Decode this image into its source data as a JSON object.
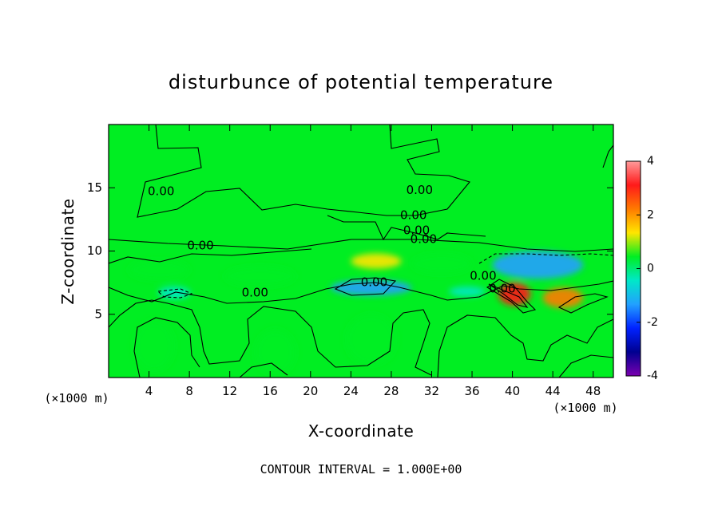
{
  "figure": {
    "title": "disturbunce of potential temperature",
    "contour_interval": "CONTOUR INTERVAL = 1.000E+00"
  },
  "chart_data": {
    "type": "heatmap",
    "title": "disturbunce of potential temperature",
    "xlabel": "X-coordinate",
    "ylabel": "Z-coordinate",
    "x_unit_left": "(×1000 m)",
    "x_unit_right": "(×1000 m)",
    "xlim": [
      0,
      50
    ],
    "ylim": [
      0,
      20
    ],
    "xticks": [
      "4",
      "8",
      "12",
      "16",
      "20",
      "24",
      "28",
      "32",
      "36",
      "40",
      "44",
      "48"
    ],
    "yticks": [
      "5",
      "10",
      "15"
    ],
    "colorbar": {
      "range": [
        -4,
        4
      ],
      "ticks": [
        "4",
        "2",
        "0",
        "-2",
        "-4"
      ],
      "colors": [
        "#ff9a9a",
        "#ff1a1a",
        "#ff7a00",
        "#ffe600",
        "#00ee22",
        "#00e8c8",
        "#22a0ff",
        "#0022ff",
        "#000090",
        "#7a00b0"
      ]
    },
    "background_value": 0,
    "contour_labels": [
      {
        "x": 5.2,
        "z": 14.7,
        "label": "0.00"
      },
      {
        "x": 9.1,
        "z": 10.4,
        "label": "0.00"
      },
      {
        "x": 30.8,
        "z": 14.8,
        "label": "0.00"
      },
      {
        "x": 30.2,
        "z": 12.8,
        "label": "0.00"
      },
      {
        "x": 30.5,
        "z": 11.6,
        "label": "0.00"
      },
      {
        "x": 31.2,
        "z": 10.9,
        "label": "0.00"
      },
      {
        "x": 14.5,
        "z": 6.7,
        "label": "0.00"
      },
      {
        "x": 26.3,
        "z": 7.5,
        "label": "0.00"
      },
      {
        "x": 37.1,
        "z": 8.0,
        "label": "0.00"
      },
      {
        "x": 39.0,
        "z": 7.0,
        "label": "0.00"
      }
    ],
    "anomalies": [
      {
        "x": 40.2,
        "z": 6.6,
        "value": 3.2,
        "rx": 1.6,
        "rz": 0.9
      },
      {
        "x": 45.0,
        "z": 6.3,
        "value": 2.2,
        "rx": 2.0,
        "rz": 0.8
      },
      {
        "x": 42.5,
        "z": 8.9,
        "value": -1.3,
        "rx": 4.5,
        "rz": 1.1
      },
      {
        "x": 26.0,
        "z": 7.1,
        "value": -1.0,
        "rx": 4.0,
        "rz": 0.6
      },
      {
        "x": 6.5,
        "z": 6.7,
        "value": -0.8,
        "rx": 1.6,
        "rz": 0.5
      },
      {
        "x": 35.5,
        "z": 6.8,
        "value": -0.6,
        "rx": 1.8,
        "rz": 0.4
      },
      {
        "x": 26.5,
        "z": 9.2,
        "value": 1.0,
        "rx": 2.5,
        "rz": 0.6
      },
      {
        "x": 15.0,
        "z": 8.0,
        "value": 0.6,
        "rx": 3.5,
        "rz": 0.8
      },
      {
        "x": 5.0,
        "z": 8.5,
        "value": 0.5,
        "rx": 3.0,
        "rz": 0.8
      },
      {
        "x": 33.0,
        "z": 9.0,
        "value": 0.5,
        "rx": 3.0,
        "rz": 0.8
      },
      {
        "x": 4.5,
        "z": 2.5,
        "value": 0.4,
        "rx": 2.0,
        "rz": 2.0
      },
      {
        "x": 16.5,
        "z": 2.0,
        "value": 0.4,
        "rx": 2.0,
        "rz": 1.8
      },
      {
        "x": 26.0,
        "z": 3.0,
        "value": 0.3,
        "rx": 2.5,
        "rz": 2.0
      }
    ]
  }
}
